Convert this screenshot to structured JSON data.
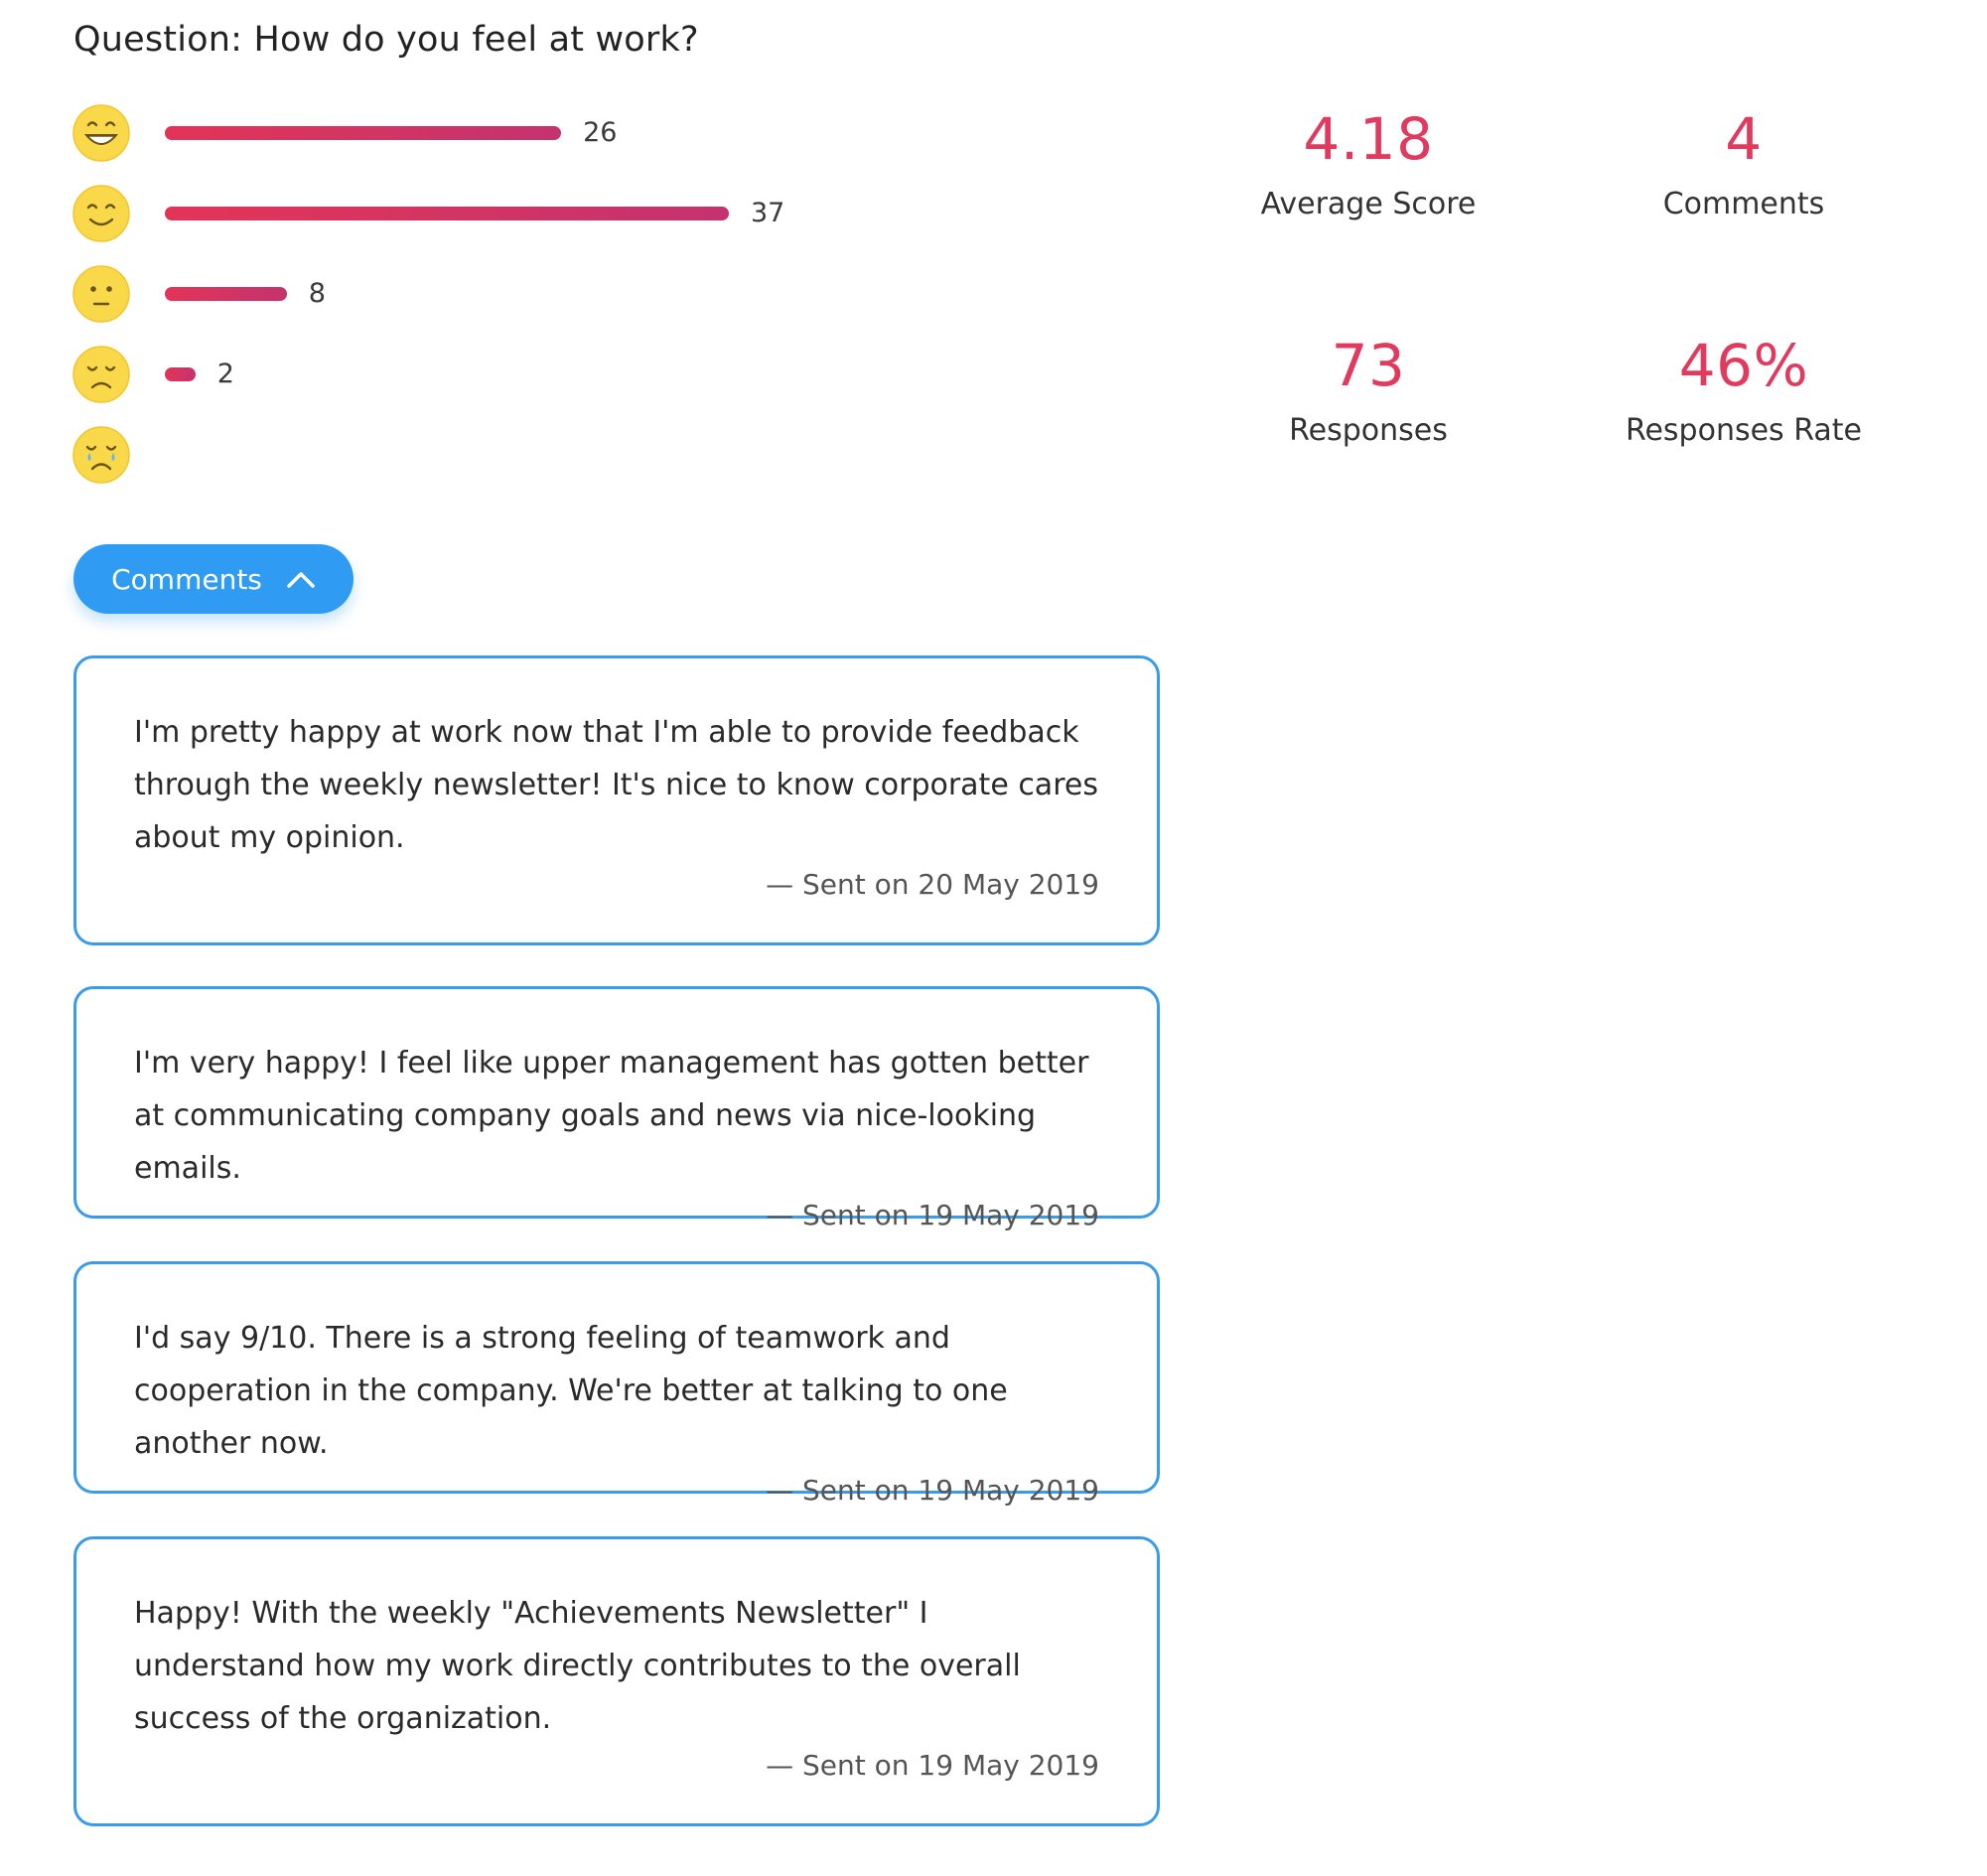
{
  "question": {
    "title": "Question: How do you feel at work?"
  },
  "distribution": [
    {
      "emoji": "grinning-face-icon",
      "count": 26
    },
    {
      "emoji": "smiling-face-icon",
      "count": 37
    },
    {
      "emoji": "neutral-face-icon",
      "count": 8
    },
    {
      "emoji": "sad-face-icon",
      "count": 2
    },
    {
      "emoji": "crying-face-icon",
      "count": null
    }
  ],
  "colors": {
    "bar_start": "#e33457",
    "bar_end": "#c4336f",
    "stat_value": "#e13a5f",
    "accent_blue": "#2f9bf3",
    "card_border": "#3a9ce9",
    "emoji_yellow": "#f9d94a"
  },
  "stats": {
    "average_score": {
      "value": "4.18",
      "label": "Average Score"
    },
    "comments": {
      "value": "4",
      "label": "Comments"
    },
    "responses": {
      "value": "73",
      "label": "Responses"
    },
    "responses_rate": {
      "value": "46%",
      "label": "Responses Rate"
    }
  },
  "comments_toggle": {
    "label": "Comments",
    "icon": "chevron-up-icon"
  },
  "comments": [
    {
      "text": "I'm pretty happy at work now that I'm able to provide feedback through the weekly newsletter! It's nice to know corporate cares about my opinion.",
      "date": "— Sent on 20 May 2019"
    },
    {
      "text": "I'm very happy! I feel like upper management has gotten better at communicating company goals and news via nice-looking emails.",
      "date": "— Sent on 19 May 2019"
    },
    {
      "text": "I'd say 9/10. There is a strong feeling of teamwork and cooperation in the company. We're better at talking to one another now.",
      "date": "— Sent on 19 May 2019"
    },
    {
      "text": "Happy! With the weekly \"Achievements Newsletter\" I understand how my work directly contributes to the overall success of the organization.",
      "date": "— Sent on 19 May 2019"
    }
  ]
}
